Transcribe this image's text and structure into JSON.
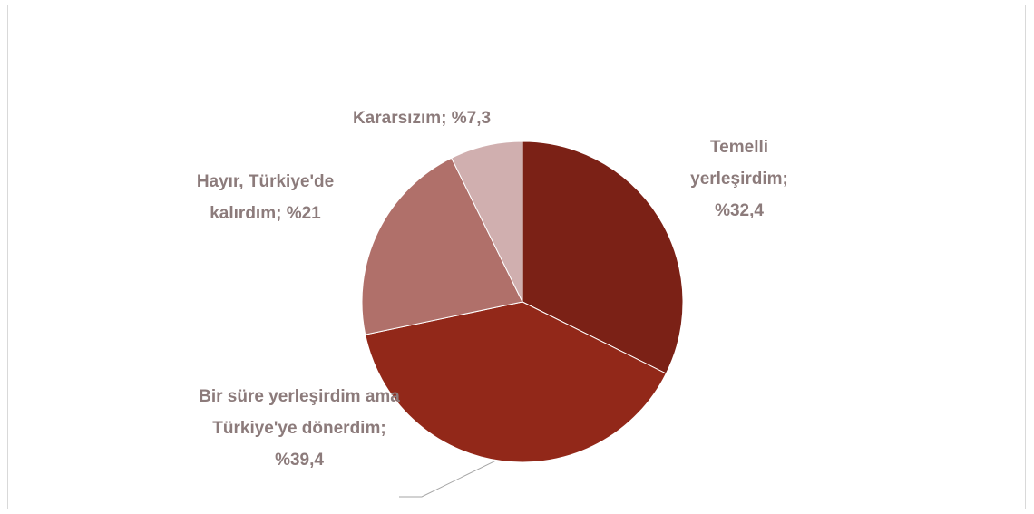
{
  "chart_data": {
    "type": "pie",
    "categories": [
      "Temelli yerleşirdim",
      "Bir süre yerleşirdim ama Türkiye'ye dönerdim",
      "Hayır, Türkiye'de kalırdım",
      "Kararsızım"
    ],
    "values": [
      32.4,
      39.4,
      21,
      7.3
    ],
    "value_labels": [
      "%32,4",
      "%39,4",
      "%21",
      "%7,3"
    ],
    "label_separator": "; ",
    "colors": [
      "#7B2116",
      "#922819",
      "#B0706A",
      "#D0AFAF"
    ]
  }
}
